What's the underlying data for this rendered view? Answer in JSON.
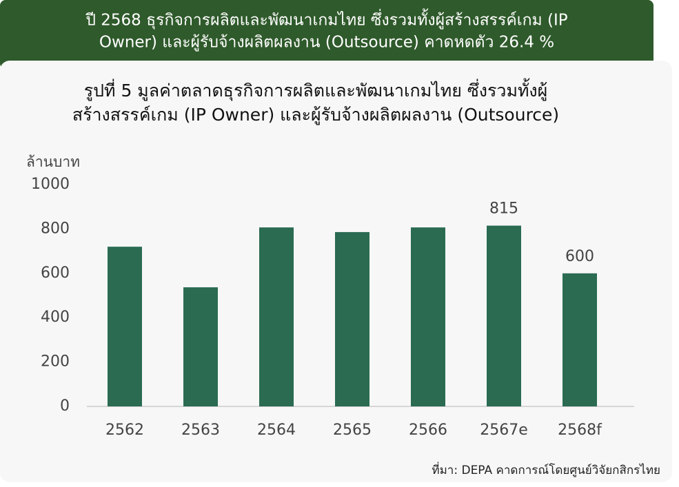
{
  "header": [
    "ปี 2568 ธุรกิจการผลิตและพัฒนาเกมไทย ซึ่งรวมทั้งผู้สร้างสรรค์เกม (IP",
    "Owner) และผู้รับจ้างผลิตผลงาน (Outsource) คาดหดตัว 26.4 %"
  ],
  "chart_data": {
    "type": "bar",
    "title": [
      "รูปที่ 5  มูลค่าตลาดธุรกิจการผลิตและพัฒนาเกมไทย ซึ่งรวมทั้งผู้",
      "สร้างสรรค์เกม (IP Owner) และผู้รับจ้างผลิตผลงาน (Outsource)"
    ],
    "y_label": "ล้านบาท",
    "categories": [
      "2562",
      "2563",
      "2564",
      "2565",
      "2566",
      "2567e",
      "2568f"
    ],
    "values": [
      720,
      537,
      807,
      786,
      807,
      815,
      600
    ],
    "show_value_label": [
      false,
      false,
      false,
      false,
      false,
      true,
      true
    ],
    "color": "#2a6b52",
    "ylim": [
      0,
      1000
    ],
    "yticks": [
      0,
      200,
      400,
      600,
      800,
      1000
    ],
    "grid": false,
    "source": "ที่มา: DEPA คาดการณ์โดยศูนย์วิจัยกสิกรไทย"
  }
}
